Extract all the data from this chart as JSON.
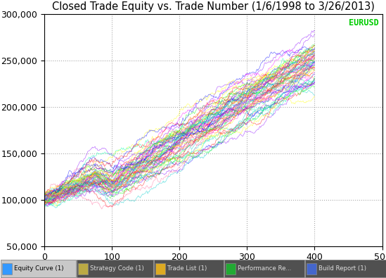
{
  "title": "Closed Trade Equity vs. Trade Number (1/6/1998 to 3/26/2013)",
  "ticker_label": "EURUSD",
  "ticker_color": "#00CC00",
  "xlim": [
    0,
    500
  ],
  "ylim": [
    50000,
    300000
  ],
  "xticks": [
    0,
    100,
    200,
    300,
    400,
    500
  ],
  "yticks": [
    50000,
    100000,
    150000,
    200000,
    250000,
    300000
  ],
  "grid_color": "#AAAAAA",
  "plot_bg_color": "#FFFFFF",
  "outer_bg_color": "#FFFFFF",
  "tab_bg": "#404040",
  "n_curves": 60,
  "noise_scale": 1800,
  "spread": 12000,
  "colors": [
    "#FF00FF",
    "#00FF00",
    "#0000FF",
    "#FF8800",
    "#00CCCC",
    "#FF0000",
    "#8800FF",
    "#00FFAA",
    "#FFFF00",
    "#FF6699"
  ],
  "tab_labels": [
    "Equity Curve (1)",
    "Strategy Code (1)",
    "Trade List (1)",
    "Performance Re...",
    "Build Report (1)"
  ],
  "title_fontsize": 10.5,
  "axis_fontsize": 9
}
